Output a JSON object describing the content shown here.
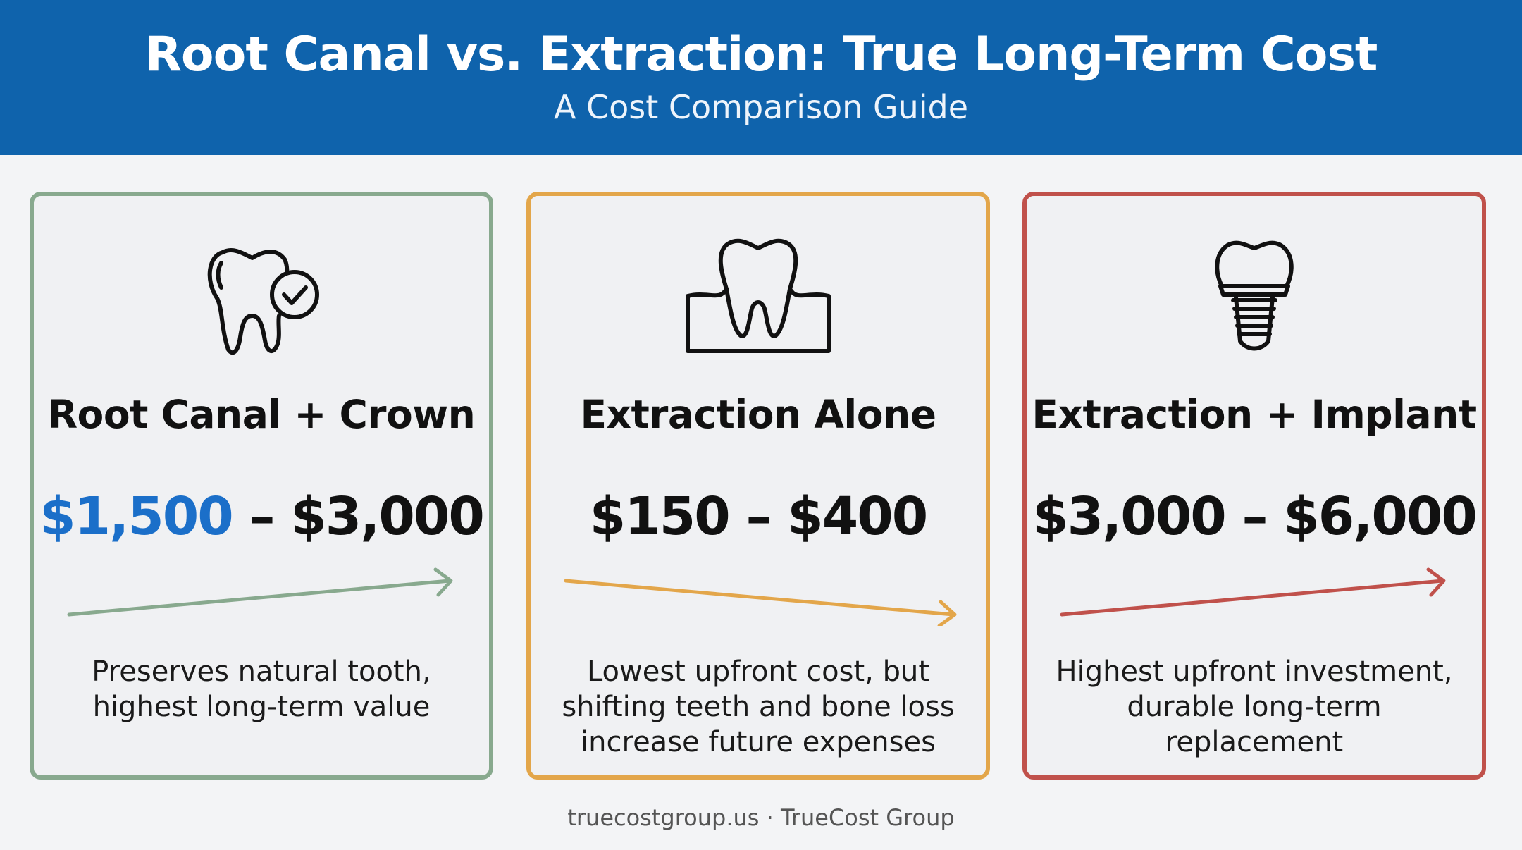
{
  "header": {
    "title": "Root Canal vs. Extraction: True Long-Term Cost",
    "subtitle": "A Cost Comparison Guide"
  },
  "cards": [
    {
      "title": "Root Canal + Crown",
      "price_low": "$1,500",
      "price_sep": " – ",
      "price_high": "$3,000",
      "description": "Preserves natural tooth, highest long-term value",
      "icon": "tooth-check-icon",
      "color": "#88a98e",
      "trend": "up"
    },
    {
      "title": "Extraction Alone",
      "price_low": "$150",
      "price_sep": " – ",
      "price_high": "$400",
      "description": "Lowest upfront cost, but shifting teeth and bone loss increase future expenses",
      "icon": "tooth-gum-icon",
      "color": "#e3a64a",
      "trend": "down"
    },
    {
      "title": "Extraction + Implant",
      "price_low": "$3,000",
      "price_sep": " – ",
      "price_high": "$6,000",
      "description": "Highest upfront investment, durable long-term replacement",
      "icon": "dental-implant-icon",
      "color": "#c0514b",
      "trend": "up"
    }
  ],
  "footer": {
    "text": "truecostgroup.us · TrueCost Group"
  },
  "colors": {
    "header_bg": "#0f63ac",
    "accent_blue": "#1b6fc9"
  }
}
